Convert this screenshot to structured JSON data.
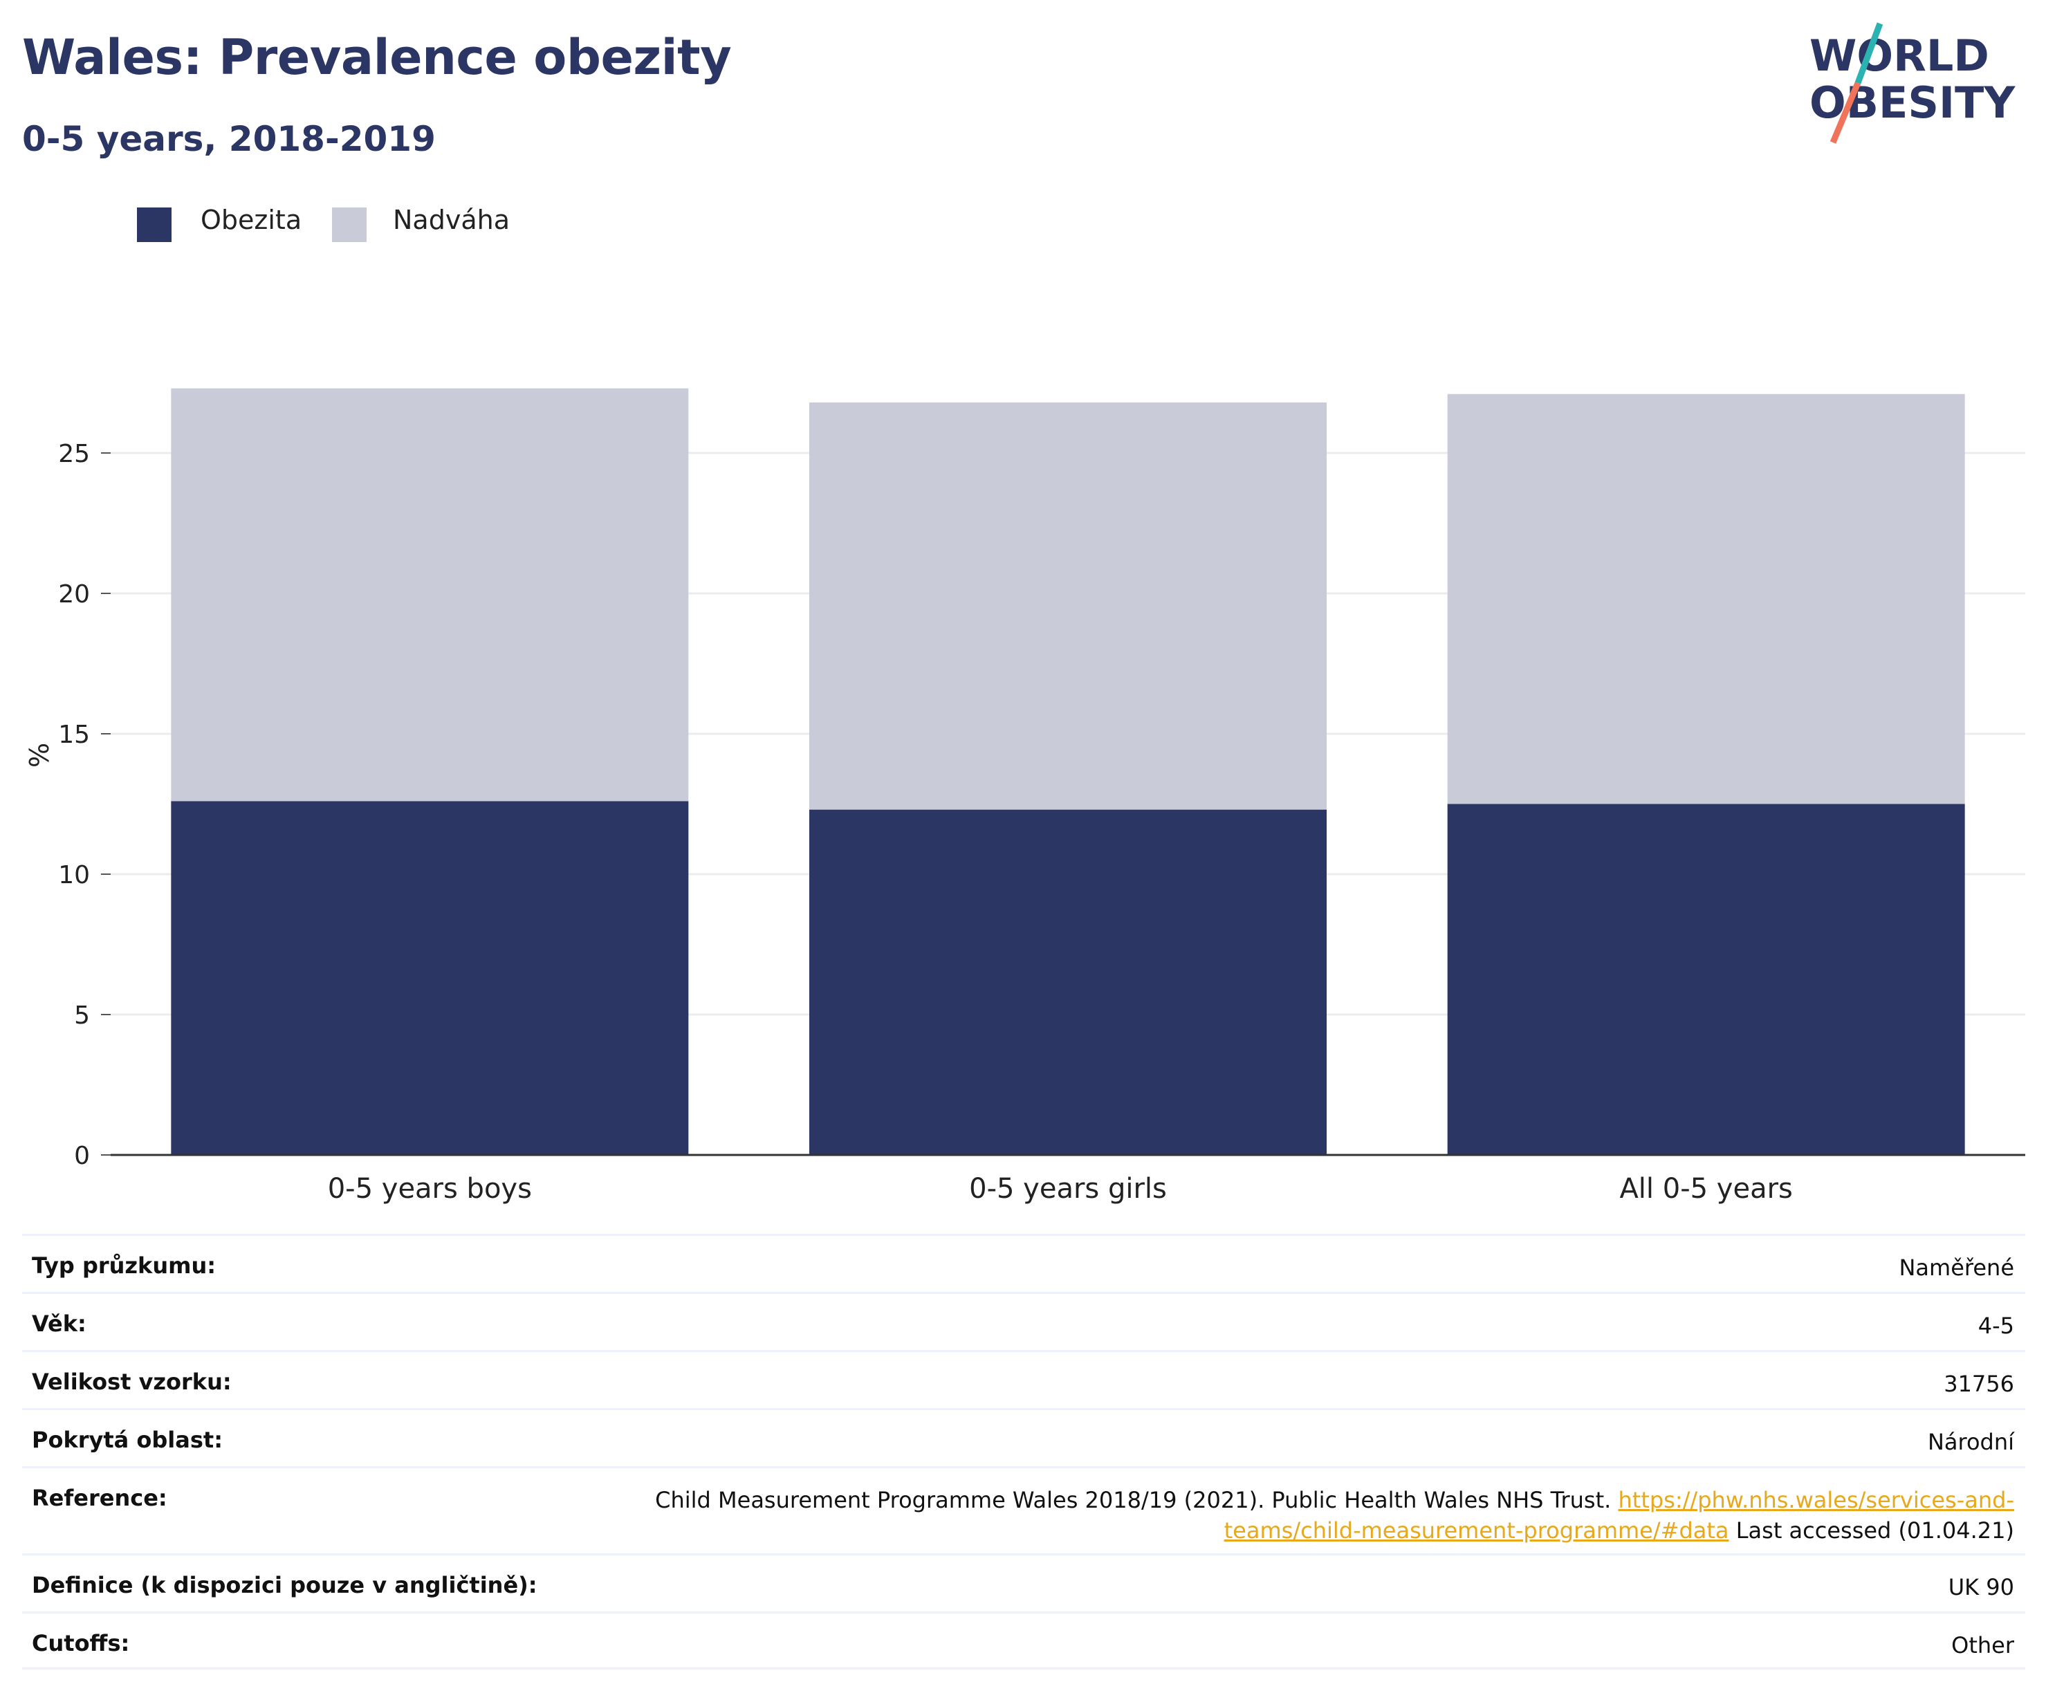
{
  "header": {
    "title": "Wales: Prevalence obezity",
    "subtitle": "0-5 years, 2018-2019"
  },
  "logo": {
    "line1": "WORLD",
    "line2": "OBESITY",
    "colors": {
      "text": "#2b3664",
      "slash_top": "#2ab3b1",
      "slash_bottom": "#f0735a"
    }
  },
  "legend": {
    "items": [
      {
        "label": "Obezita",
        "color": "#2b3664"
      },
      {
        "label": "Nadváha",
        "color": "#cacbd8"
      }
    ]
  },
  "chart_data": {
    "type": "bar",
    "stacked": true,
    "categories": [
      "0-5 years boys",
      "0-5 years girls",
      "All 0-5 years"
    ],
    "series": [
      {
        "name": "Obezita",
        "color": "#2b3664",
        "values": [
          12.6,
          12.3,
          12.5
        ]
      },
      {
        "name": "Nadváha",
        "color": "#cacbd8",
        "values": [
          14.7,
          14.5,
          14.6
        ]
      }
    ],
    "ylabel": "%",
    "xlabel": "",
    "ylim": [
      0,
      28
    ],
    "yticks": [
      0,
      5,
      10,
      15,
      20,
      25
    ],
    "grid": true,
    "legend_position": "top-left"
  },
  "info_table": {
    "rows": [
      {
        "key": "Typ průzkumu:",
        "value": "Naměřené"
      },
      {
        "key": "Věk:",
        "value": "4-5"
      },
      {
        "key": "Velikost vzorku:",
        "value": "31756"
      },
      {
        "key": "Pokrytá oblast:",
        "value": "Národní"
      },
      {
        "key": "Reference:",
        "value_before": "Child Measurement Programme Wales 2018/19 (2021). Public Health Wales NHS Trust. ",
        "link_line1": "https://phw.nhs.wales/services-and-",
        "link_line2": "teams/child-measurement-programme/#data",
        "value_after": " Last accessed (01.04.21)"
      },
      {
        "key": "Definice (k dispozici pouze v angličtině):",
        "value": "UK 90"
      },
      {
        "key": "Cutoffs:",
        "value": "Other"
      }
    ]
  }
}
